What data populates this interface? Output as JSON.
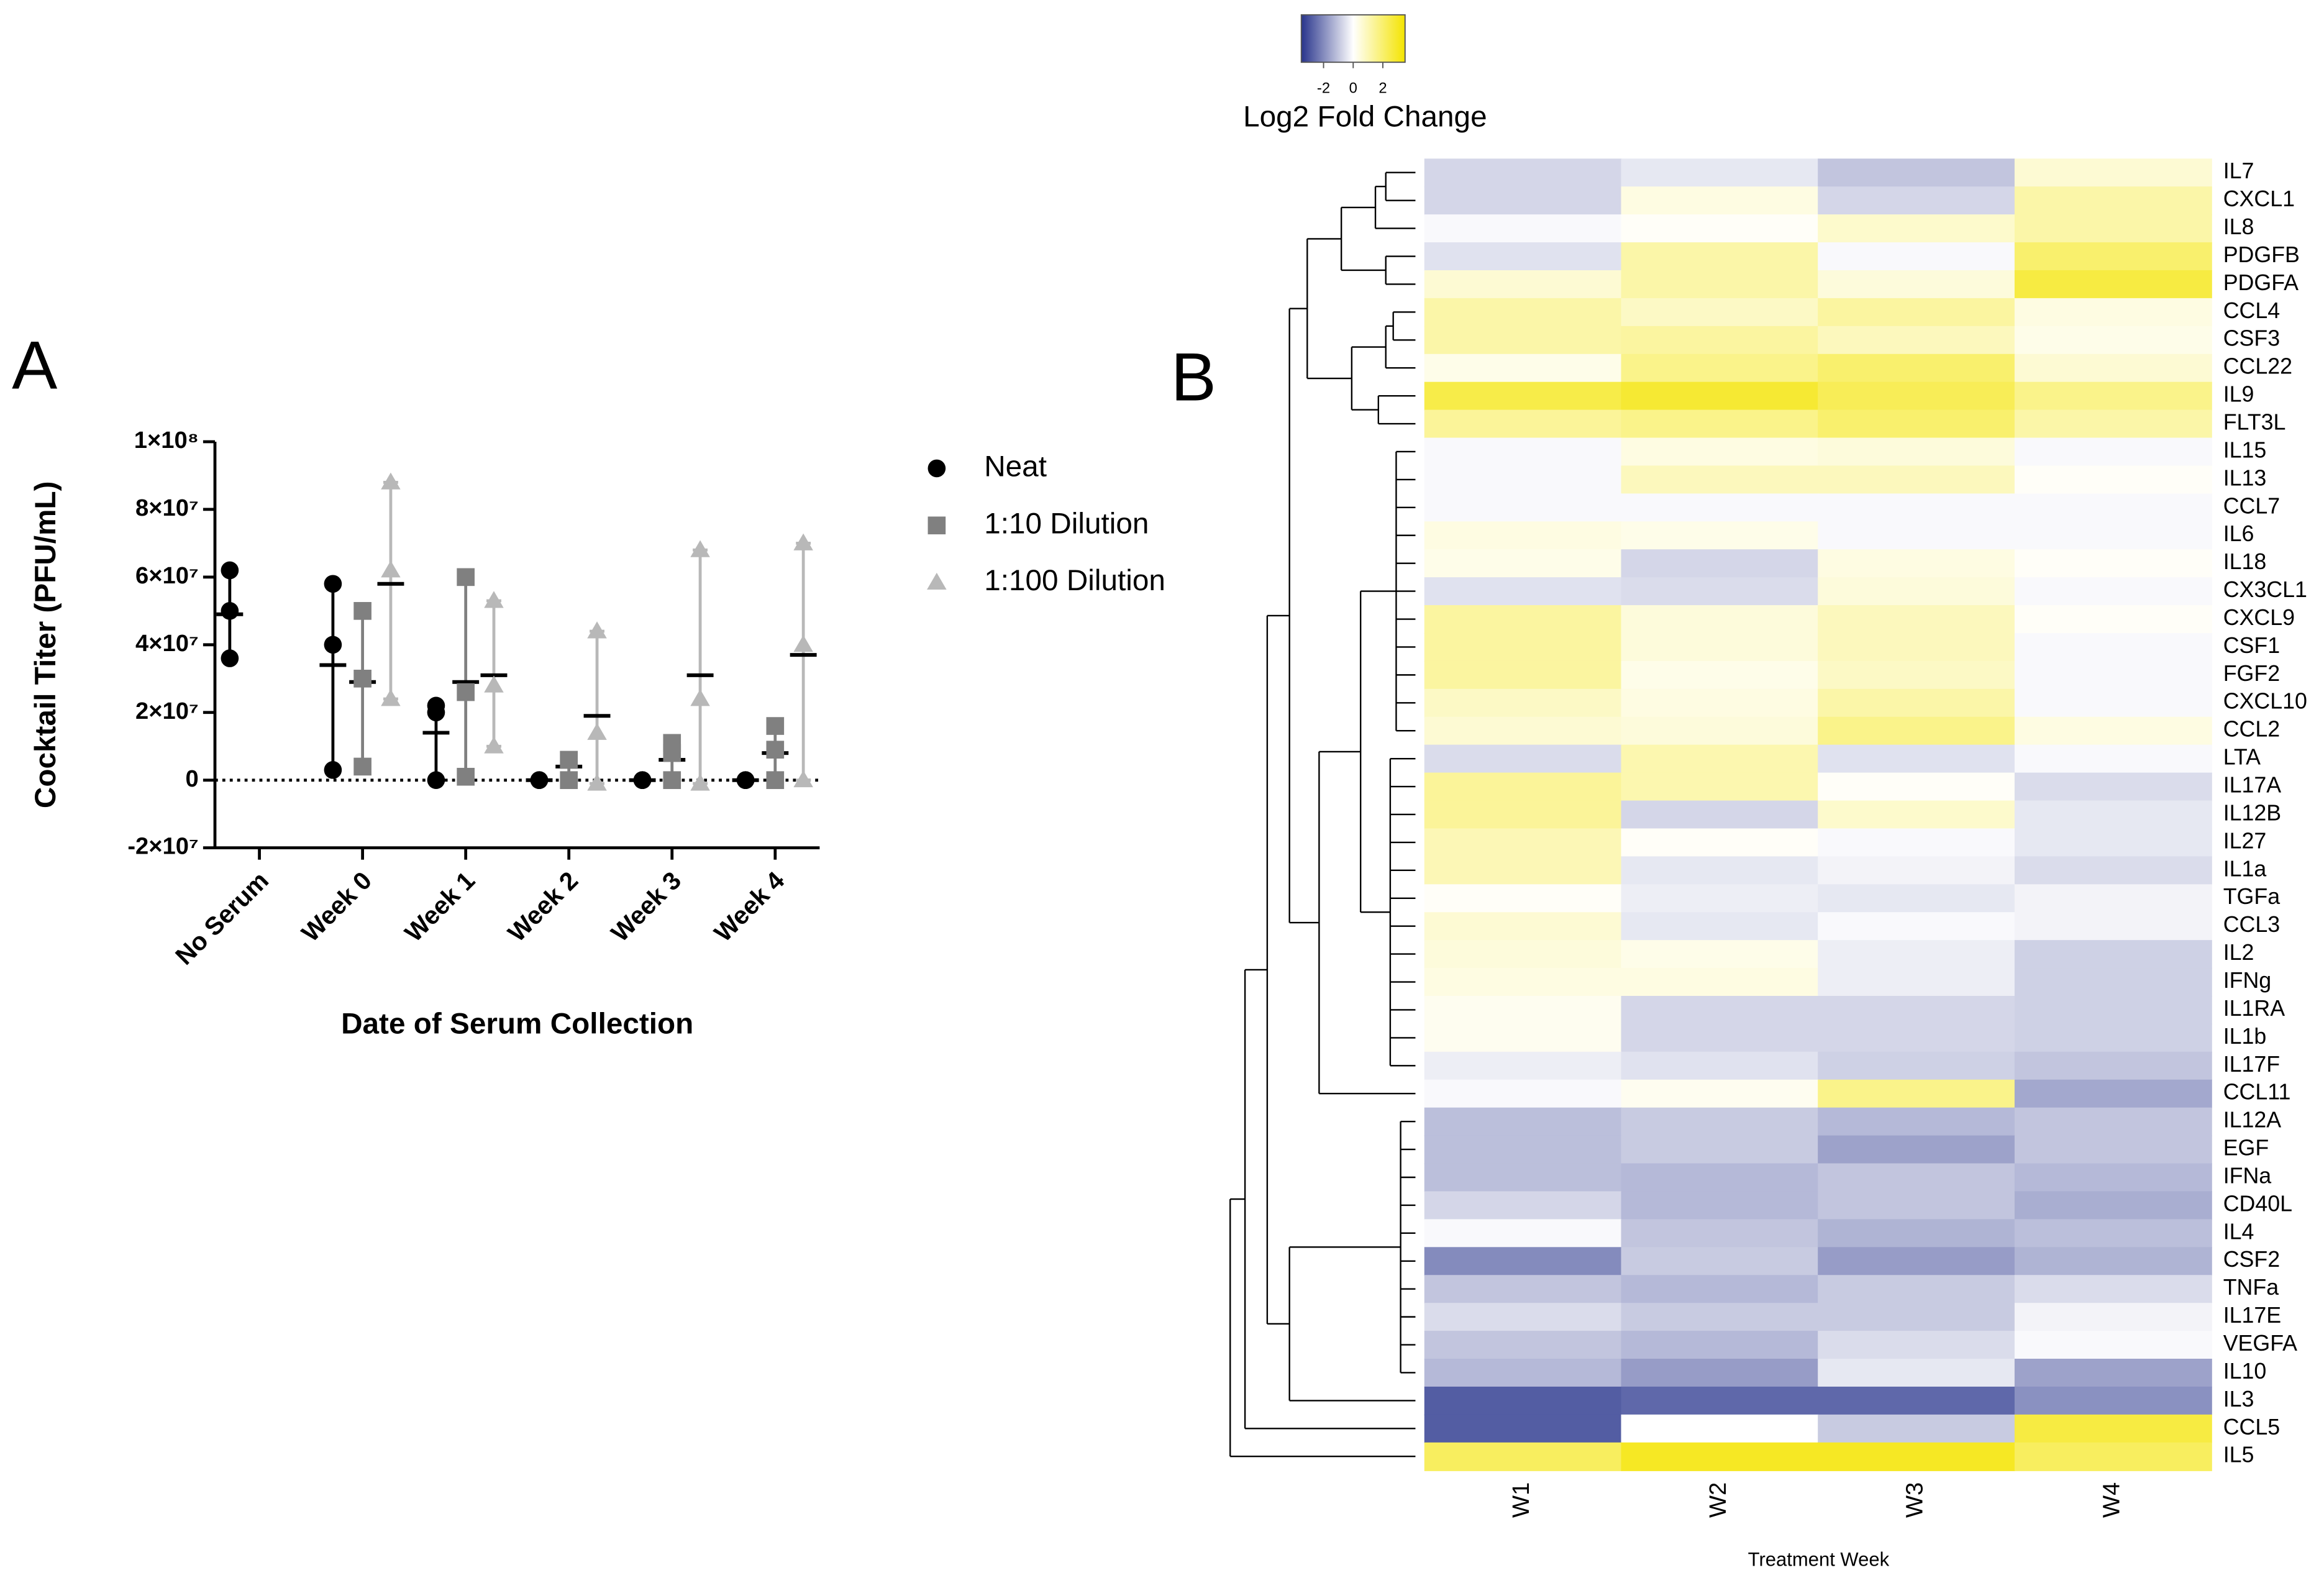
{
  "chart_data": [
    {
      "type": "scatter",
      "panel": "A",
      "ylabel": "Cocktail Titer (PFU/mL)",
      "xlabel": "Date of Serum Collection",
      "categories": [
        "No Serum",
        "Week 0",
        "Week 1",
        "Week 2",
        "Week 3",
        "Week 4"
      ],
      "ylim": [
        -20000000,
        100000000
      ],
      "yticks": [
        {
          "value": -20000000,
          "label": "-2×10⁷"
        },
        0,
        {
          "value": 20000000,
          "label": "2×10⁷"
        },
        {
          "value": 40000000,
          "label": "4×10⁷"
        },
        {
          "value": 60000000,
          "label": "6×10⁷"
        },
        {
          "value": 80000000,
          "label": "8×10⁷"
        },
        {
          "value": 100000000,
          "label": "1×10⁸"
        }
      ],
      "zero_line": true,
      "series": [
        {
          "name": "Neat",
          "color": "#000000",
          "marker": "circle",
          "points": [
            [
              62000000,
              50000000,
              36000000
            ],
            [
              58000000,
              40000000,
              3000000
            ],
            [
              22000000,
              20000000,
              0
            ],
            [
              0,
              0,
              0
            ],
            [
              0,
              0,
              0
            ],
            [
              0,
              0,
              0
            ]
          ],
          "means": [
            49000000,
            34000000,
            14000000,
            0,
            0,
            0
          ]
        },
        {
          "name": "1:10 Dilution",
          "color": "#808080",
          "marker": "square",
          "points": [
            null,
            [
              50000000,
              30000000,
              4000000
            ],
            [
              60000000,
              26000000,
              1000000
            ],
            [
              6000000,
              6000000,
              0
            ],
            [
              11000000,
              8000000,
              0
            ],
            [
              16000000,
              9000000,
              0
            ]
          ],
          "means": [
            null,
            29000000,
            29000000,
            4000000,
            6000000,
            8000000
          ]
        },
        {
          "name": "1:100 Dilution",
          "color": "#b8b8b8",
          "marker": "triangle",
          "points": [
            null,
            [
              88000000,
              62000000,
              24000000
            ],
            [
              53000000,
              28000000,
              10000000
            ],
            [
              44000000,
              14000000,
              -1000000
            ],
            [
              68000000,
              24000000,
              -1000000
            ],
            [
              70000000,
              40000000,
              0
            ]
          ],
          "means": [
            null,
            58000000,
            31000000,
            19000000,
            31000000,
            37000000
          ]
        }
      ]
    },
    {
      "type": "heatmap",
      "panel": "B",
      "xlabel": "Treatment Week",
      "columns": [
        "W1",
        "W2",
        "W3",
        "W4"
      ],
      "rows": [
        "IL7",
        "CXCL1",
        "IL8",
        "PDGFB",
        "PDGFA",
        "CCL4",
        "CSF3",
        "CCL22",
        "IL9",
        "FLT3L",
        "IL15",
        "IL13",
        "CCL7",
        "IL6",
        "IL18",
        "CX3CL1",
        "CXCL9",
        "CSF1",
        "FGF2",
        "CXCL10",
        "CCL2",
        "LTA",
        "IL17A",
        "IL12B",
        "IL27",
        "IL1a",
        "TGFa",
        "CCL3",
        "IL2",
        "IFNg",
        "IL1RA",
        "IL1b",
        "IL17F",
        "CCL11",
        "IL12A",
        "EGF",
        "IFNa",
        "CD40L",
        "IL4",
        "CSF2",
        "TNFa",
        "IL17E",
        "VEGFA",
        "IL10",
        "IL3",
        "CCL5",
        "IL5"
      ],
      "values": [
        [
          -0.7,
          -0.4,
          -1.0,
          0.6
        ],
        [
          -0.7,
          0.4,
          -0.7,
          1.2
        ],
        [
          -0.1,
          0.1,
          0.7,
          1.2
        ],
        [
          -0.5,
          1.2,
          -0.1,
          2.0
        ],
        [
          0.6,
          1.2,
          0.5,
          2.6
        ],
        [
          1.2,
          0.8,
          1.3,
          0.4
        ],
        [
          1.2,
          1.3,
          0.9,
          0.3
        ],
        [
          0.3,
          1.6,
          2.0,
          0.6
        ],
        [
          2.5,
          2.8,
          2.3,
          1.6
        ],
        [
          1.4,
          1.6,
          2.0,
          1.2
        ],
        [
          -0.1,
          0.4,
          0.5,
          -0.1
        ],
        [
          -0.1,
          0.9,
          0.9,
          0.1
        ],
        [
          -0.1,
          -0.1,
          -0.1,
          -0.1
        ],
        [
          0.4,
          0.3,
          -0.1,
          -0.1
        ],
        [
          0.3,
          -0.7,
          0.4,
          0.1
        ],
        [
          -0.5,
          -0.6,
          0.5,
          -0.1
        ],
        [
          1.3,
          0.5,
          0.9,
          0.1
        ],
        [
          1.3,
          0.5,
          0.9,
          -0.1
        ],
        [
          1.3,
          0.3,
          0.8,
          -0.1
        ],
        [
          0.8,
          0.4,
          1.2,
          -0.1
        ],
        [
          0.6,
          0.5,
          1.6,
          0.4
        ],
        [
          -0.6,
          1.1,
          -0.5,
          -0.1
        ],
        [
          1.4,
          1.1,
          0.1,
          -0.6
        ],
        [
          1.4,
          -0.7,
          0.7,
          -0.4
        ],
        [
          1.0,
          0.1,
          -0.1,
          -0.4
        ],
        [
          1.0,
          -0.4,
          -0.2,
          -0.6
        ],
        [
          0.1,
          -0.3,
          -0.4,
          -0.2
        ],
        [
          0.6,
          -0.4,
          -0.1,
          -0.2
        ],
        [
          0.5,
          0.3,
          -0.3,
          -0.8
        ],
        [
          0.4,
          0.4,
          -0.3,
          -0.8
        ],
        [
          0.2,
          -0.7,
          -0.7,
          -0.8
        ],
        [
          0.2,
          -0.7,
          -0.7,
          -0.8
        ],
        [
          -0.3,
          -0.5,
          -0.8,
          -1.0
        ],
        [
          -0.1,
          0.2,
          1.6,
          -1.5
        ],
        [
          -1.1,
          -0.9,
          -1.2,
          -1.0
        ],
        [
          -1.1,
          -0.9,
          -1.6,
          -1.0
        ],
        [
          -1.1,
          -1.2,
          -1.0,
          -1.2
        ],
        [
          -0.7,
          -1.2,
          -1.0,
          -1.4
        ],
        [
          -0.1,
          -1.0,
          -1.3,
          -1.1
        ],
        [
          -2.0,
          -0.9,
          -1.7,
          -1.3
        ],
        [
          -1.0,
          -1.2,
          -0.9,
          -0.6
        ],
        [
          -0.6,
          -0.9,
          -0.9,
          -0.2
        ],
        [
          -1.0,
          -1.2,
          -0.6,
          -0.1
        ],
        [
          -1.2,
          -1.7,
          -0.4,
          -1.6
        ],
        [
          -2.8,
          -2.6,
          -2.6,
          -1.9
        ],
        [
          -2.8,
          0.0,
          -0.9,
          2.6
        ],
        [
          2.2,
          3.0,
          3.0,
          2.2
        ]
      ],
      "colorbar": {
        "title": "Log2 Fold Change",
        "zlim": [
          -3.5,
          3.5
        ],
        "ticks": [
          -2,
          0,
          2
        ],
        "colors": [
          "#28348c",
          "#ffffff",
          "#f4e400"
        ]
      }
    }
  ]
}
